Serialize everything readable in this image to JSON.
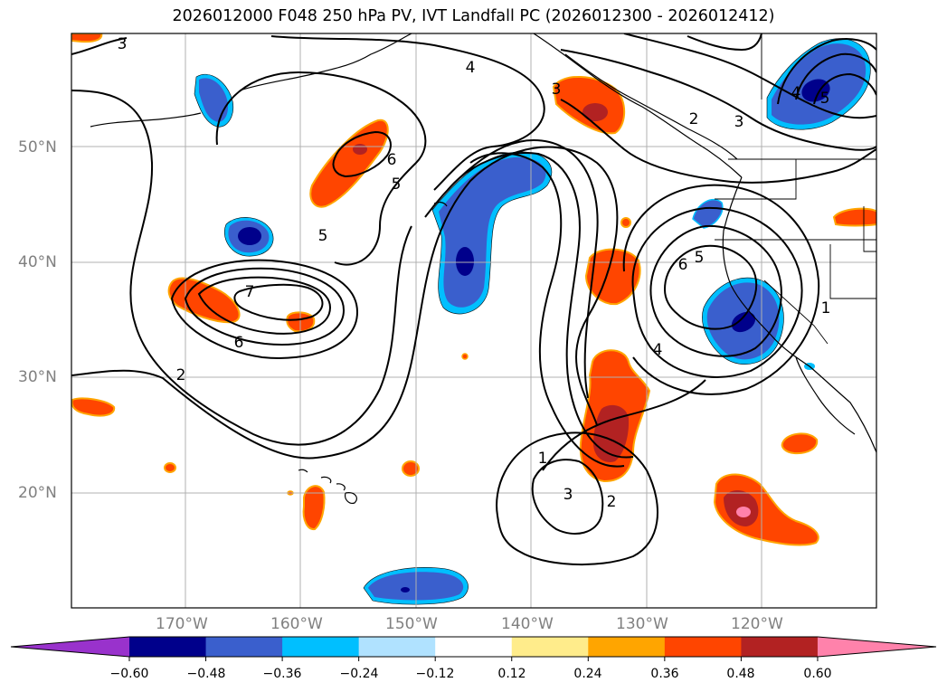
{
  "title": "2026012000 F048 250 hPa PV, IVT Landfall PC (2026012300 - 2026012412)",
  "map": {
    "region": "North Pacific / US West Coast",
    "projection": "Plate Carree",
    "lon_labels": [
      "170°W",
      "160°W",
      "150°W",
      "140°W",
      "130°W",
      "120°W"
    ],
    "lat_labels": [
      "50°N",
      "40°N",
      "30°N",
      "20°N"
    ],
    "contour_labels": [
      "3",
      "4",
      "3",
      "2",
      "3",
      "6",
      "5",
      "4",
      "5",
      "5",
      "7",
      "6",
      "2",
      "6",
      "5",
      "4",
      "1",
      "3",
      "2",
      "1"
    ]
  },
  "colorbar": {
    "ticks": [
      "−0.60",
      "−0.48",
      "−0.36",
      "−0.24",
      "−0.12",
      "0.12",
      "0.24",
      "0.36",
      "0.48",
      "0.60"
    ],
    "colors": [
      "#9932cc",
      "#00008b",
      "#3a5fcd",
      "#00bfff",
      "#b0e2ff",
      "#ffffff",
      "#ffec8b",
      "#ffa500",
      "#ff4500",
      "#b22222",
      "#ff82ab"
    ]
  }
}
